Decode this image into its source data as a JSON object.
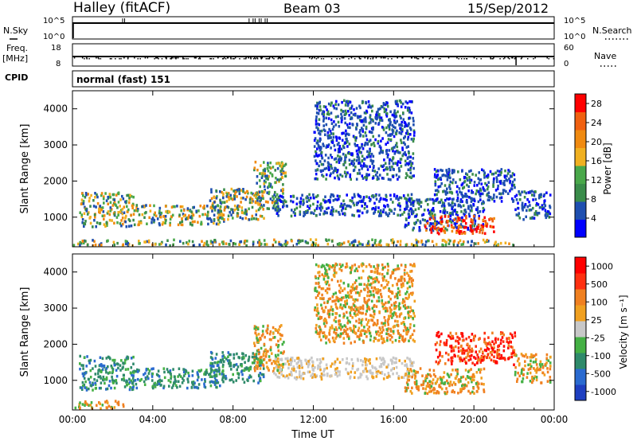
{
  "header": {
    "station": "Halley (fitACF)",
    "beam": "Beam 03",
    "date": "15/Sep/2012"
  },
  "summary_panels": {
    "nsky": {
      "left_label": "N.Sky",
      "right_label": "N.Search",
      "left_ticks": [
        "10^5",
        "10^0"
      ],
      "right_ticks": [
        "10^5",
        "10^0"
      ]
    },
    "freq": {
      "left_label_line1": "Freq.",
      "left_label_line2": "[MHz]",
      "right_label": "Nave",
      "left_ticks": [
        "18",
        "8"
      ],
      "right_ticks": [
        "60",
        "0"
      ]
    },
    "cpid": {
      "left_label": "CPID",
      "mode_text": "normal (fast) 151"
    }
  },
  "colors": {
    "power_scale": [
      "#0000ff",
      "#1e4fb0",
      "#3a8c4a",
      "#49a84a",
      "#f0b020",
      "#f08a10",
      "#f06010",
      "#ff0000"
    ],
    "velocity_scale": [
      "#1e3fc0",
      "#2a6ad0",
      "#2e8a6a",
      "#44b044",
      "#c8c8c8",
      "#f0a020",
      "#f08020",
      "#ff3010",
      "#ff0000"
    ]
  },
  "chart_data": [
    {
      "type": "heatmap",
      "title": "Power",
      "xlabel": "",
      "ylabel": "Slant Range [km]",
      "x_ticks": [
        "00:00",
        "04:00",
        "08:00",
        "12:00",
        "16:00",
        "20:00",
        "00:00"
      ],
      "y_ticks": [
        "1000",
        "2000",
        "3000",
        "4000"
      ],
      "ylim": [
        180,
        4500
      ],
      "xlim_hours": [
        0,
        24
      ],
      "colorbar": {
        "label": "Power [dB]",
        "ticks": [
          "4",
          "8",
          "12",
          "16",
          "20",
          "24",
          "28"
        ],
        "range": [
          0,
          30
        ]
      },
      "regions": [
        {
          "t0": 0.3,
          "t1": 3.0,
          "r0": 700,
          "r1": 1650,
          "level": "mid"
        },
        {
          "t0": 3.0,
          "t1": 7.5,
          "r0": 750,
          "r1": 1300,
          "level": "mid"
        },
        {
          "t0": 6.8,
          "t1": 9.5,
          "r0": 900,
          "r1": 1750,
          "level": "mid"
        },
        {
          "t0": 9.0,
          "t1": 10.5,
          "r0": 1200,
          "r1": 2500,
          "level": "mid"
        },
        {
          "t0": 10.2,
          "t1": 10.6,
          "r0": 2000,
          "r1": 2500,
          "level": "mid"
        },
        {
          "t0": 12.0,
          "t1": 17.0,
          "r0": 2000,
          "r1": 4200,
          "level": "low"
        },
        {
          "t0": 10.0,
          "t1": 17.0,
          "r0": 1000,
          "r1": 1600,
          "level": "low"
        },
        {
          "t0": 16.5,
          "t1": 20.5,
          "r0": 600,
          "r1": 1500,
          "level": "low"
        },
        {
          "t0": 17.5,
          "t1": 21.0,
          "r0": 500,
          "r1": 1000,
          "level": "high"
        },
        {
          "t0": 18.0,
          "t1": 22.0,
          "r0": 1400,
          "r1": 2300,
          "level": "low"
        },
        {
          "t0": 22.0,
          "t1": 23.8,
          "r0": 900,
          "r1": 1700,
          "level": "low"
        },
        {
          "t0": 0.0,
          "t1": 22.0,
          "r0": 180,
          "r1": 350,
          "level": "mid"
        }
      ]
    },
    {
      "type": "heatmap",
      "title": "Velocity",
      "xlabel": "Time UT",
      "ylabel": "Slant Range [km]",
      "x_ticks": [
        "00:00",
        "04:00",
        "08:00",
        "12:00",
        "16:00",
        "20:00",
        "00:00"
      ],
      "y_ticks": [
        "1000",
        "2000",
        "3000",
        "4000"
      ],
      "ylim": [
        180,
        4500
      ],
      "xlim_hours": [
        0,
        24
      ],
      "colorbar": {
        "label": "Velocity [m s⁻¹]",
        "ticks": [
          "1000",
          "500",
          "100",
          "25",
          "-25",
          "-100",
          "-500",
          "-1000"
        ],
        "range": [
          -1000,
          1000
        ]
      },
      "regions": [
        {
          "t0": 0.3,
          "t1": 3.0,
          "r0": 700,
          "r1": 1650,
          "level": "pos"
        },
        {
          "t0": 3.0,
          "t1": 7.5,
          "r0": 750,
          "r1": 1300,
          "level": "pos"
        },
        {
          "t0": 6.8,
          "t1": 9.5,
          "r0": 900,
          "r1": 1750,
          "level": "pos"
        },
        {
          "t0": 9.0,
          "t1": 10.5,
          "r0": 1200,
          "r1": 2500,
          "level": "neg"
        },
        {
          "t0": 12.0,
          "t1": 17.0,
          "r0": 2000,
          "r1": 4200,
          "level": "neg"
        },
        {
          "t0": 10.0,
          "t1": 17.0,
          "r0": 1000,
          "r1": 1600,
          "level": "zero"
        },
        {
          "t0": 16.5,
          "t1": 20.5,
          "r0": 600,
          "r1": 1300,
          "level": "neg"
        },
        {
          "t0": 18.0,
          "t1": 22.0,
          "r0": 1400,
          "r1": 2300,
          "level": "negstrong"
        },
        {
          "t0": 22.0,
          "t1": 23.8,
          "r0": 900,
          "r1": 1700,
          "level": "neg"
        },
        {
          "t0": 0.0,
          "t1": 2.5,
          "r0": 180,
          "r1": 400,
          "level": "neg"
        }
      ]
    }
  ]
}
